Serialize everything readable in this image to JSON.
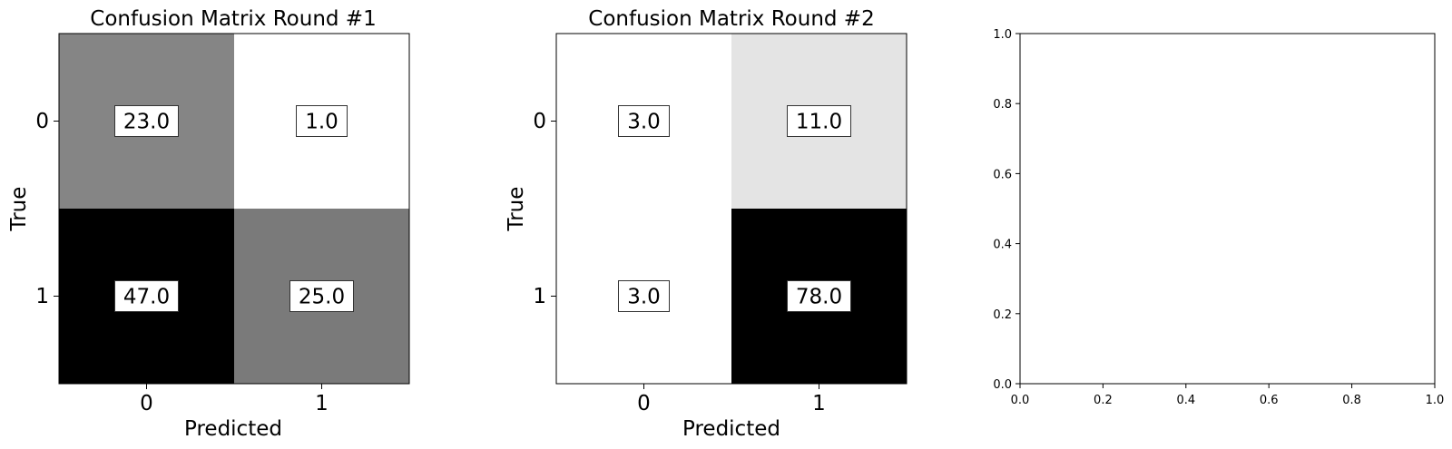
{
  "chart_data": [
    {
      "type": "heatmap",
      "title": "Confusion Matrix Round #1",
      "xlabel": "Predicted",
      "ylabel": "True",
      "x_categories": [
        "0",
        "1"
      ],
      "y_categories": [
        "0",
        "1"
      ],
      "values": [
        [
          23.0,
          1.0
        ],
        [
          47.0,
          25.0
        ]
      ],
      "value_labels": [
        [
          "23.0",
          "1.0"
        ],
        [
          "47.0",
          "25.0"
        ]
      ],
      "colormap": "Greys"
    },
    {
      "type": "heatmap",
      "title": "Confusion Matrix Round #2",
      "xlabel": "Predicted",
      "ylabel": "True",
      "x_categories": [
        "0",
        "1"
      ],
      "y_categories": [
        "0",
        "1"
      ],
      "values": [
        [
          3.0,
          11.0
        ],
        [
          3.0,
          78.0
        ]
      ],
      "value_labels": [
        [
          "3.0",
          "11.0"
        ],
        [
          "3.0",
          "78.0"
        ]
      ],
      "colormap": "Greys"
    },
    {
      "type": "scatter",
      "title": "",
      "xlabel": "",
      "ylabel": "",
      "xlim": [
        0.0,
        1.0
      ],
      "ylim": [
        0.0,
        1.0
      ],
      "xticks": [
        "0.0",
        "0.2",
        "0.4",
        "0.6",
        "0.8",
        "1.0"
      ],
      "yticks": [
        "0.0",
        "0.2",
        "0.4",
        "0.6",
        "0.8",
        "1.0"
      ],
      "series": []
    }
  ]
}
